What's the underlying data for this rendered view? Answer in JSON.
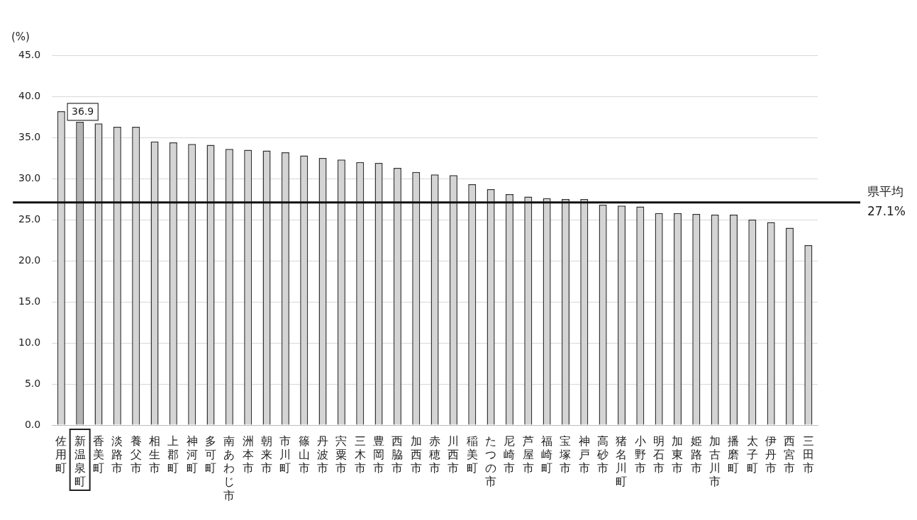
{
  "chart_data": {
    "type": "bar",
    "ylabel": "(%)",
    "categories": [
      "佐用町",
      "新温泉町",
      "香美町",
      "淡路市",
      "養父市",
      "相生市",
      "上郡町",
      "神河町",
      "多可町",
      "南あわじ市",
      "洲本市",
      "朝来市",
      "市川町",
      "篠山市",
      "丹波市",
      "宍粟市",
      "三木市",
      "豊岡市",
      "西脇市",
      "加西市",
      "赤穂市",
      "川西市",
      "稲美町",
      "たつの市",
      "尼崎市",
      "芦屋市",
      "福崎町",
      "宝塚市",
      "神戸市",
      "高砂市",
      "猪名川町",
      "小野市",
      "明石市",
      "加東市",
      "姫路市",
      "加古川市",
      "播磨町",
      "太子町",
      "伊丹市",
      "西宮市",
      "三田市"
    ],
    "values": [
      38.2,
      36.9,
      36.7,
      36.3,
      36.3,
      34.5,
      34.4,
      34.2,
      34.1,
      33.6,
      33.5,
      33.4,
      33.2,
      32.8,
      32.5,
      32.3,
      32.0,
      31.9,
      31.3,
      30.8,
      30.5,
      30.4,
      29.3,
      28.7,
      28.1,
      27.8,
      27.6,
      27.5,
      27.5,
      26.8,
      26.7,
      26.6,
      25.8,
      25.8,
      25.7,
      25.6,
      25.6,
      25.0,
      24.7,
      24.0,
      21.9
    ],
    "colors": [
      "#d4d4d4",
      "#b4b4b4",
      "#d4d4d4",
      "#d4d4d4",
      "#d4d4d4",
      "#d4d4d4",
      "#d4d4d4",
      "#d4d4d4",
      "#d4d4d4",
      "#d4d4d4",
      "#d4d4d4",
      "#d4d4d4",
      "#d4d4d4",
      "#d4d4d4",
      "#d4d4d4",
      "#d4d4d4",
      "#d4d4d4",
      "#d4d4d4",
      "#d4d4d4",
      "#d4d4d4",
      "#d4d4d4",
      "#d4d4d4",
      "#d4d4d4",
      "#d4d4d4",
      "#d4d4d4",
      "#d4d4d4",
      "#d4d4d4",
      "#d4d4d4",
      "#d4d4d4",
      "#d4d4d4",
      "#d4d4d4",
      "#d4d4d4",
      "#d4d4d4",
      "#d4d4d4",
      "#d4d4d4",
      "#d4d4d4",
      "#d4d4d4",
      "#d4d4d4",
      "#d4d4d4",
      "#d4d4d4",
      "#d4d4d4"
    ],
    "value_labels": [
      null,
      "36.9",
      null,
      null,
      null,
      null,
      null,
      null,
      null,
      null,
      null,
      null,
      null,
      null,
      null,
      null,
      null,
      null,
      null,
      null,
      null,
      null,
      null,
      null,
      null,
      null,
      null,
      null,
      null,
      null,
      null,
      null,
      null,
      null,
      null,
      null,
      null,
      null,
      null,
      null,
      null
    ],
    "ylim": [
      0,
      45
    ],
    "yticks": [
      {
        "value": 0,
        "label": "0.0"
      },
      {
        "value": 5,
        "label": "5.0"
      },
      {
        "value": 10,
        "label": "10.0"
      },
      {
        "value": 15,
        "label": "15.0"
      },
      {
        "value": 20,
        "label": "20.0"
      },
      {
        "value": 25,
        "label": "25.0"
      },
      {
        "value": 30,
        "label": "30.0"
      },
      {
        "value": 35,
        "label": "35.0"
      },
      {
        "value": 40,
        "label": "40.0"
      },
      {
        "value": 45,
        "label": "45.0"
      }
    ],
    "grid": "y",
    "ref_lines": [
      {
        "axis": "y",
        "value": 27.1,
        "label": "県平均 27.1%",
        "color": "#111111"
      }
    ]
  }
}
